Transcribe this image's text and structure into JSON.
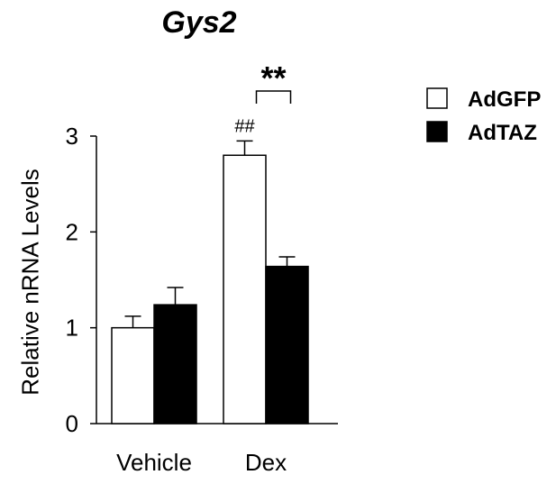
{
  "chart_data": {
    "type": "bar",
    "title": "Gys2",
    "ylabel": "Relative nRNA Levels",
    "xlabel": "",
    "categories": [
      "Vehicle",
      "Dex"
    ],
    "ylim": [
      0,
      3
    ],
    "yticks": [
      "0",
      "1",
      "2",
      "3"
    ],
    "series": [
      {
        "name": "AdGFP",
        "values": [
          1.0,
          2.8
        ],
        "errors": [
          0.12,
          0.15
        ],
        "color": "#ffffff"
      },
      {
        "name": "AdTAZ",
        "values": [
          1.24,
          1.64
        ],
        "errors": [
          0.18,
          0.1
        ],
        "color": "#000000"
      }
    ],
    "annotations": {
      "dex_adgfp_marker": "##",
      "dex_comparison": "**"
    },
    "legend_position": "top-right",
    "grid": false
  }
}
